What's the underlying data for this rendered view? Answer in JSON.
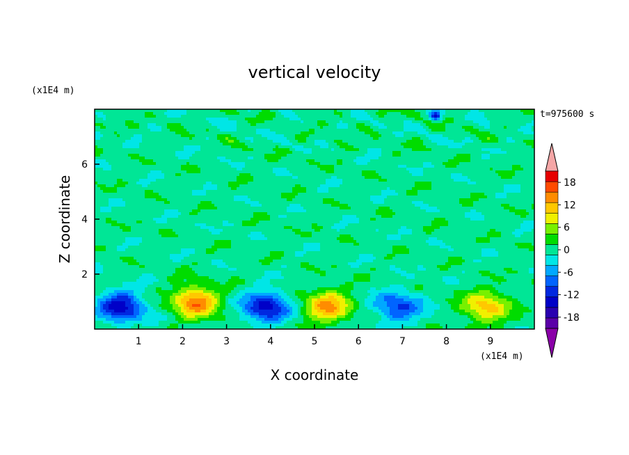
{
  "chart_data": {
    "type": "heatmap",
    "title": "vertical velocity",
    "xlabel": "X coordinate",
    "ylabel": "Z coordinate",
    "x_unit": "(x1E4 m)",
    "y_unit": "(x1E4 m)",
    "time_label": "t=975600 s",
    "xlim": [
      0,
      10
    ],
    "ylim": [
      0,
      8
    ],
    "x_ticks": [
      1,
      2,
      3,
      4,
      5,
      6,
      7,
      8,
      9
    ],
    "y_ticks": [
      2,
      4,
      6
    ],
    "colorbar": {
      "levels": [
        -21,
        -18,
        -15,
        -12,
        -9,
        -6,
        -3,
        0,
        3,
        6,
        9,
        12,
        15,
        18,
        21
      ],
      "tick_labels": [
        "18",
        "12",
        "6",
        "0",
        "-6",
        "-12",
        "-18"
      ],
      "tick_values": [
        18,
        12,
        6,
        0,
        -6,
        -12,
        -18
      ],
      "colors": [
        "#5b00a8",
        "#2a00b0",
        "#0000c8",
        "#0028e0",
        "#0064ff",
        "#00a8ff",
        "#00e6e6",
        "#00e696",
        "#00dc00",
        "#78f000",
        "#f0f000",
        "#ffc800",
        "#ff8c00",
        "#ff4b00",
        "#e60000"
      ],
      "over_color": "#f5a6a6",
      "under_color": "#8a00a8"
    },
    "features": [
      {
        "x": 0.6,
        "z": 0.8,
        "peak": -15
      },
      {
        "x": 2.3,
        "z": 1.0,
        "peak": 16
      },
      {
        "x": 3.9,
        "z": 0.8,
        "peak": -15
      },
      {
        "x": 5.3,
        "z": 0.8,
        "peak": 14
      },
      {
        "x": 6.9,
        "z": 0.8,
        "peak": -11
      },
      {
        "x": 8.9,
        "z": 0.8,
        "peak": 12
      },
      {
        "x": 7.75,
        "z": 7.75,
        "peak": -14
      }
    ]
  }
}
